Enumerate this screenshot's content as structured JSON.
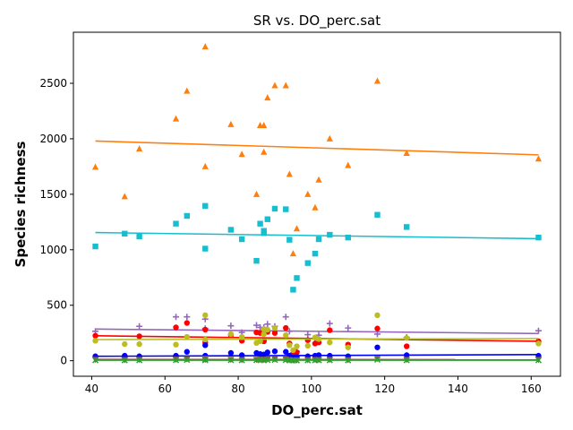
{
  "chart_data": {
    "type": "scatter",
    "title": "SR vs. DO_perc.sat",
    "xlabel": "DO_perc.sat",
    "ylabel": "Species richness",
    "xlim": [
      35,
      168
    ],
    "ylim": [
      -140,
      2960
    ],
    "xticks": [
      40,
      60,
      80,
      100,
      120,
      140,
      160
    ],
    "yticks": [
      0,
      500,
      1000,
      1500,
      2000,
      2500
    ],
    "grid": false,
    "legend": "none",
    "series": [
      {
        "color": "#ff7f0e",
        "marker": "triangle",
        "points": [
          [
            41,
            1745
          ],
          [
            49,
            1480
          ],
          [
            53,
            1910
          ],
          [
            63,
            2180
          ],
          [
            66,
            2430
          ],
          [
            71,
            2830
          ],
          [
            71,
            1750
          ],
          [
            78,
            2130
          ],
          [
            81,
            1860
          ],
          [
            85,
            1500
          ],
          [
            86,
            2120
          ],
          [
            87,
            1880
          ],
          [
            87,
            2120
          ],
          [
            88,
            2370
          ],
          [
            90,
            2480
          ],
          [
            93,
            2480
          ],
          [
            94,
            1680
          ],
          [
            95,
            965
          ],
          [
            96,
            1190
          ],
          [
            99,
            1500
          ],
          [
            101,
            1380
          ],
          [
            102,
            1630
          ],
          [
            105,
            2000
          ],
          [
            110,
            1760
          ],
          [
            118,
            2520
          ],
          [
            126,
            1870
          ],
          [
            162,
            1820
          ]
        ],
        "fit": [
          [
            41,
            1980
          ],
          [
            162,
            1855
          ]
        ]
      },
      {
        "color": "#17becf",
        "marker": "square",
        "points": [
          [
            41,
            1030
          ],
          [
            49,
            1145
          ],
          [
            53,
            1120
          ],
          [
            63,
            1235
          ],
          [
            66,
            1305
          ],
          [
            71,
            1395
          ],
          [
            71,
            1010
          ],
          [
            78,
            1180
          ],
          [
            81,
            1095
          ],
          [
            85,
            900
          ],
          [
            86,
            1235
          ],
          [
            87,
            1170
          ],
          [
            87,
            1150
          ],
          [
            88,
            1275
          ],
          [
            90,
            1370
          ],
          [
            93,
            1365
          ],
          [
            94,
            1090
          ],
          [
            95,
            640
          ],
          [
            96,
            745
          ],
          [
            99,
            880
          ],
          [
            101,
            965
          ],
          [
            102,
            1095
          ],
          [
            105,
            1135
          ],
          [
            110,
            1110
          ],
          [
            118,
            1315
          ],
          [
            126,
            1205
          ],
          [
            162,
            1110
          ]
        ],
        "fit": [
          [
            41,
            1155
          ],
          [
            162,
            1100
          ]
        ]
      },
      {
        "color": "#9467bd",
        "marker": "plus",
        "points": [
          [
            41,
            265
          ],
          [
            49,
            30
          ],
          [
            53,
            310
          ],
          [
            63,
            395
          ],
          [
            66,
            395
          ],
          [
            71,
            375
          ],
          [
            71,
            290
          ],
          [
            78,
            315
          ],
          [
            81,
            255
          ],
          [
            85,
            320
          ],
          [
            86,
            300
          ],
          [
            87,
            300
          ],
          [
            88,
            330
          ],
          [
            90,
            310
          ],
          [
            93,
            395
          ],
          [
            94,
            265
          ],
          [
            95,
            70
          ],
          [
            96,
            85
          ],
          [
            99,
            235
          ],
          [
            101,
            200
          ],
          [
            102,
            230
          ],
          [
            105,
            335
          ],
          [
            110,
            295
          ],
          [
            118,
            240
          ],
          [
            126,
            210
          ],
          [
            162,
            270
          ]
        ],
        "fit": [
          [
            41,
            285
          ],
          [
            162,
            245
          ]
        ]
      },
      {
        "color": "#ff0000",
        "marker": "circle",
        "points": [
          [
            41,
            225
          ],
          [
            49,
            30
          ],
          [
            53,
            220
          ],
          [
            63,
            300
          ],
          [
            66,
            340
          ],
          [
            71,
            280
          ],
          [
            71,
            165
          ],
          [
            78,
            230
          ],
          [
            81,
            180
          ],
          [
            85,
            255
          ],
          [
            86,
            250
          ],
          [
            87,
            175
          ],
          [
            87,
            180
          ],
          [
            88,
            260
          ],
          [
            90,
            250
          ],
          [
            93,
            295
          ],
          [
            94,
            155
          ],
          [
            95,
            60
          ],
          [
            96,
            75
          ],
          [
            99,
            185
          ],
          [
            101,
            155
          ],
          [
            102,
            165
          ],
          [
            105,
            275
          ],
          [
            110,
            145
          ],
          [
            118,
            290
          ],
          [
            126,
            130
          ],
          [
            162,
            175
          ]
        ],
        "fit": [
          [
            41,
            225
          ],
          [
            162,
            175
          ]
        ]
      },
      {
        "color": "#bcbd22",
        "marker": "circle",
        "points": [
          [
            41,
            180
          ],
          [
            49,
            150
          ],
          [
            53,
            150
          ],
          [
            63,
            145
          ],
          [
            66,
            215
          ],
          [
            71,
            410
          ],
          [
            71,
            190
          ],
          [
            78,
            240
          ],
          [
            81,
            215
          ],
          [
            85,
            160
          ],
          [
            86,
            175
          ],
          [
            87,
            285
          ],
          [
            87,
            240
          ],
          [
            88,
            280
          ],
          [
            90,
            295
          ],
          [
            93,
            230
          ],
          [
            94,
            140
          ],
          [
            95,
            95
          ],
          [
            96,
            130
          ],
          [
            99,
            135
          ],
          [
            101,
            210
          ],
          [
            102,
            195
          ],
          [
            105,
            165
          ],
          [
            110,
            120
          ],
          [
            118,
            410
          ],
          [
            126,
            205
          ],
          [
            162,
            155
          ]
        ],
        "fit": [
          [
            41,
            190
          ],
          [
            162,
            200
          ]
        ]
      },
      {
        "color": "#0000ff",
        "marker": "circle",
        "points": [
          [
            41,
            40
          ],
          [
            49,
            45
          ],
          [
            53,
            40
          ],
          [
            63,
            45
          ],
          [
            66,
            80
          ],
          [
            71,
            140
          ],
          [
            71,
            45
          ],
          [
            78,
            70
          ],
          [
            81,
            50
          ],
          [
            85,
            70
          ],
          [
            86,
            60
          ],
          [
            87,
            55
          ],
          [
            87,
            55
          ],
          [
            88,
            75
          ],
          [
            90,
            85
          ],
          [
            93,
            80
          ],
          [
            94,
            45
          ],
          [
            95,
            30
          ],
          [
            96,
            35
          ],
          [
            99,
            40
          ],
          [
            101,
            45
          ],
          [
            102,
            50
          ],
          [
            105,
            45
          ],
          [
            110,
            40
          ],
          [
            118,
            120
          ],
          [
            126,
            50
          ],
          [
            162,
            45
          ]
        ],
        "fit": [
          [
            41,
            40
          ],
          [
            162,
            55
          ]
        ]
      },
      {
        "color": "#8c564b",
        "marker": "triangle-down",
        "points": [
          [
            41,
            10
          ],
          [
            49,
            8
          ],
          [
            53,
            10
          ],
          [
            63,
            12
          ],
          [
            66,
            15
          ],
          [
            71,
            20
          ],
          [
            71,
            10
          ],
          [
            78,
            10
          ],
          [
            81,
            8
          ],
          [
            85,
            10
          ],
          [
            86,
            12
          ],
          [
            87,
            10
          ],
          [
            87,
            12
          ],
          [
            88,
            14
          ],
          [
            90,
            15
          ],
          [
            93,
            14
          ],
          [
            94,
            8
          ],
          [
            95,
            5
          ],
          [
            96,
            6
          ],
          [
            99,
            8
          ],
          [
            101,
            10
          ],
          [
            102,
            9
          ],
          [
            105,
            10
          ],
          [
            110,
            8
          ],
          [
            118,
            20
          ],
          [
            126,
            10
          ],
          [
            162,
            10
          ]
        ],
        "fit": [
          [
            41,
            12
          ],
          [
            162,
            10
          ]
        ]
      },
      {
        "color": "#2ca02c",
        "marker": "x",
        "points": [
          [
            41,
            5
          ],
          [
            49,
            4
          ],
          [
            53,
            5
          ],
          [
            63,
            6
          ],
          [
            66,
            8
          ],
          [
            71,
            10
          ],
          [
            71,
            5
          ],
          [
            78,
            6
          ],
          [
            81,
            5
          ],
          [
            85,
            6
          ],
          [
            86,
            6
          ],
          [
            87,
            5
          ],
          [
            87,
            6
          ],
          [
            88,
            7
          ],
          [
            90,
            8
          ],
          [
            93,
            7
          ],
          [
            94,
            4
          ],
          [
            95,
            3
          ],
          [
            96,
            3
          ],
          [
            99,
            4
          ],
          [
            101,
            5
          ],
          [
            102,
            5
          ],
          [
            105,
            5
          ],
          [
            110,
            4
          ],
          [
            118,
            10
          ],
          [
            126,
            5
          ],
          [
            162,
            5
          ]
        ],
        "fit": [
          [
            41,
            5
          ],
          [
            162,
            5
          ]
        ]
      }
    ]
  }
}
